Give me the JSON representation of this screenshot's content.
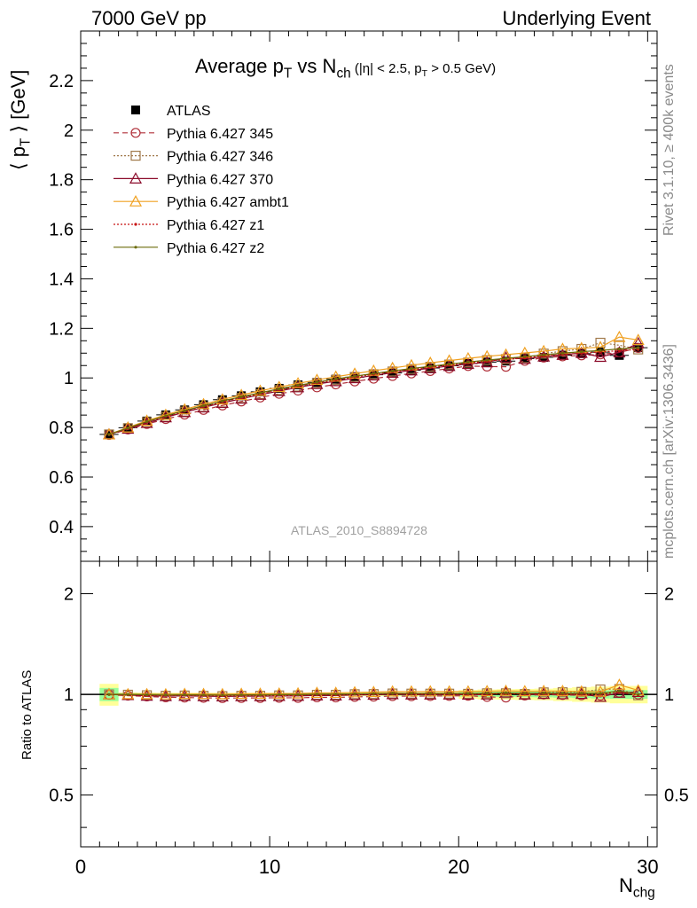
{
  "header": {
    "left": "7000 GeV pp",
    "right": "Underlying Event"
  },
  "side_labels": {
    "rivet": "Rivet 3.1.10, ≥ 400k events",
    "mcplots": "mcplots.cern.ch [arXiv:1306.3436]"
  },
  "watermark": "ATLAS_2010_S8894728",
  "axis_labels": {
    "y_top_main": "⟨ p",
    "y_top_sub": "T",
    "y_top_tail": " ⟩ [GeV]",
    "y_bottom": "Ratio to ATLAS",
    "x_main": "N",
    "x_sub": "chg"
  },
  "title": {
    "main": "Average p",
    "sub1": "T",
    "mid": " vs N",
    "sub2": "ch",
    "small_a": " (|η| < 2.5, p",
    "small_sub": "T",
    "small_b": " > 0.5 GeV)"
  },
  "chart_data": [
    {
      "type": "scatter",
      "panel": "main",
      "xlim": [
        0,
        30.5
      ],
      "ylim": [
        0.26,
        2.4
      ],
      "yticks": [
        0.4,
        0.6,
        0.8,
        1,
        1.2,
        1.4,
        1.6,
        1.8,
        2,
        2.2
      ],
      "ytick_labels": [
        "0.4",
        "0.6",
        "0.8",
        "1",
        "1.2",
        "1.4",
        "1.6",
        "1.8",
        "2",
        "2.2"
      ],
      "x": [
        1.5,
        2.5,
        3.5,
        4.5,
        5.5,
        6.5,
        7.5,
        8.5,
        9.5,
        10.5,
        11.5,
        12.5,
        13.5,
        14.5,
        15.5,
        16.5,
        17.5,
        18.5,
        19.5,
        20.5,
        21.5,
        22.5,
        23.5,
        24.5,
        25.5,
        26.5,
        27.5,
        28.5,
        29.5
      ],
      "legend": "top-left",
      "series": [
        {
          "name": "ATLAS",
          "color": "#000000",
          "marker": "filled-square",
          "values": [
            0.772,
            0.799,
            0.826,
            0.851,
            0.871,
            0.892,
            0.912,
            0.928,
            0.944,
            0.958,
            0.972,
            0.982,
            0.995,
            1.003,
            1.013,
            1.02,
            1.031,
            1.04,
            1.049,
            1.058,
            1.064,
            1.068,
            1.078,
            1.083,
            1.092,
            1.098,
            1.104,
            1.091,
            1.122
          ]
        },
        {
          "name": "Pythia 6.427 345",
          "color": "#b0303a",
          "marker": "open-circle",
          "dash": "6,4",
          "values": [
            0.77,
            0.792,
            0.814,
            0.834,
            0.852,
            0.871,
            0.889,
            0.905,
            0.921,
            0.936,
            0.949,
            0.962,
            0.974,
            0.986,
            0.997,
            1.008,
            1.018,
            1.028,
            1.038,
            1.048,
            1.046,
            1.045,
            1.069,
            1.082,
            1.087,
            1.091,
            1.095,
            1.103,
            1.121
          ]
        },
        {
          "name": "Pythia 6.427 346",
          "color": "#a0784a",
          "marker": "open-square",
          "dash": "2,2",
          "values": [
            0.772,
            0.797,
            0.821,
            0.843,
            0.864,
            0.883,
            0.901,
            0.919,
            0.935,
            0.951,
            0.965,
            0.979,
            0.992,
            1.004,
            1.015,
            1.026,
            1.036,
            1.045,
            1.054,
            1.062,
            1.072,
            1.076,
            1.08,
            1.098,
            1.108,
            1.117,
            1.142,
            1.132,
            1.115
          ]
        },
        {
          "name": "Pythia 6.427 370",
          "color": "#8b0a2a",
          "marker": "open-triangle",
          "dash": "",
          "values": [
            0.772,
            0.795,
            0.818,
            0.841,
            0.862,
            0.881,
            0.899,
            0.916,
            0.932,
            0.947,
            0.962,
            0.975,
            0.987,
            0.999,
            1.01,
            1.021,
            1.03,
            1.039,
            1.048,
            1.056,
            1.063,
            1.082,
            1.077,
            1.086,
            1.093,
            1.101,
            1.085,
            1.103,
            1.14
          ]
        },
        {
          "name": "Pythia 6.427 ambt1",
          "color": "#f0a020",
          "marker": "open-triangle",
          "dash": "",
          "values": [
            0.772,
            0.8,
            0.827,
            0.851,
            0.873,
            0.894,
            0.913,
            0.931,
            0.948,
            0.963,
            0.978,
            0.992,
            1.005,
            1.017,
            1.029,
            1.04,
            1.051,
            1.061,
            1.07,
            1.079,
            1.087,
            1.094,
            1.101,
            1.108,
            1.117,
            1.12,
            1.124,
            1.165,
            1.153
          ]
        },
        {
          "name": "Pythia 6.427 z1",
          "color": "#c81010",
          "marker": "dot",
          "dash": "2,2",
          "values": [
            0.771,
            0.797,
            0.822,
            0.845,
            0.866,
            0.886,
            0.904,
            0.921,
            0.938,
            0.953,
            0.967,
            0.98,
            0.992,
            1.004,
            1.015,
            1.025,
            1.034,
            1.043,
            1.052,
            1.06,
            1.067,
            1.074,
            1.081,
            1.088,
            1.095,
            1.1,
            1.105,
            1.11,
            1.115
          ]
        },
        {
          "name": "Pythia 6.427 z2",
          "color": "#6b6b0a",
          "marker": "dot",
          "dash": "",
          "values": [
            0.772,
            0.798,
            0.824,
            0.847,
            0.868,
            0.888,
            0.907,
            0.924,
            0.94,
            0.956,
            0.97,
            0.983,
            0.996,
            1.007,
            1.018,
            1.028,
            1.038,
            1.047,
            1.056,
            1.064,
            1.072,
            1.079,
            1.086,
            1.093,
            1.1,
            1.106,
            1.111,
            1.117,
            1.122
          ]
        }
      ]
    },
    {
      "type": "scatter",
      "panel": "ratio",
      "ylabel": "Ratio to ATLAS",
      "log_scale": true,
      "xlim": [
        0,
        30.5
      ],
      "ylim": [
        0.35,
        2.5
      ],
      "yticks": [
        0.5,
        1,
        2
      ],
      "ytick_labels": [
        "0.5",
        "1",
        "2"
      ],
      "xticks": [
        0,
        10,
        20,
        30
      ],
      "xtick_labels": [
        "0",
        "10",
        "20",
        "30"
      ],
      "band_colors": {
        "outer": "#ffff99",
        "inner": "#99ff99"
      },
      "band_halfwidth_outer": [
        0.075,
        0.014,
        0.012,
        0.011,
        0.011,
        0.011,
        0.011,
        0.011,
        0.011,
        0.011,
        0.011,
        0.011,
        0.012,
        0.012,
        0.012,
        0.013,
        0.013,
        0.014,
        0.015,
        0.03,
        0.034,
        0.036,
        0.038,
        0.04,
        0.045,
        0.05,
        0.055,
        0.06,
        0.06
      ],
      "band_halfwidth_inner": [
        0.045,
        0.008,
        0.007,
        0.006,
        0.006,
        0.006,
        0.006,
        0.006,
        0.006,
        0.006,
        0.006,
        0.006,
        0.007,
        0.007,
        0.007,
        0.008,
        0.008,
        0.009,
        0.01,
        0.015,
        0.017,
        0.018,
        0.019,
        0.02,
        0.022,
        0.025,
        0.028,
        0.03,
        0.03
      ]
    }
  ]
}
